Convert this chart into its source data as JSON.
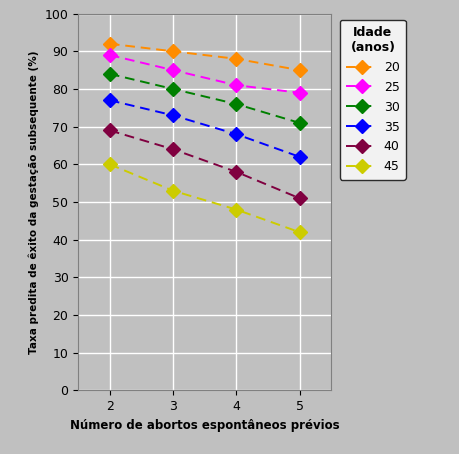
{
  "x": [
    2,
    3,
    4,
    5
  ],
  "series": [
    {
      "label": "20",
      "color": "#FF8C00",
      "values": [
        92,
        90,
        88,
        85
      ]
    },
    {
      "label": "25",
      "color": "#FF00FF",
      "values": [
        89,
        85,
        81,
        79
      ]
    },
    {
      "label": "30",
      "color": "#008000",
      "values": [
        84,
        80,
        76,
        71
      ]
    },
    {
      "label": "35",
      "color": "#0000FF",
      "values": [
        77,
        73,
        68,
        62
      ]
    },
    {
      "label": "40",
      "color": "#800040",
      "values": [
        69,
        64,
        58,
        51
      ]
    },
    {
      "label": "45",
      "color": "#CCCC00",
      "values": [
        60,
        53,
        48,
        42
      ]
    }
  ],
  "xlabel": "Número de abortos espontâneos prévios",
  "ylabel": "Taxa predita de êxito da gestação subsequente (%)",
  "legend_title": "Idade\n(anos)",
  "ylim": [
    0,
    100
  ],
  "xlim": [
    1.5,
    5.5
  ],
  "yticks": [
    0,
    10,
    20,
    30,
    40,
    50,
    60,
    70,
    80,
    90,
    100
  ],
  "xticks": [
    2,
    3,
    4,
    5
  ],
  "bg_color": "#C0C0C0",
  "grid_color": "#FFFFFF",
  "fig_width": 4.6,
  "fig_height": 4.54,
  "dpi": 100
}
